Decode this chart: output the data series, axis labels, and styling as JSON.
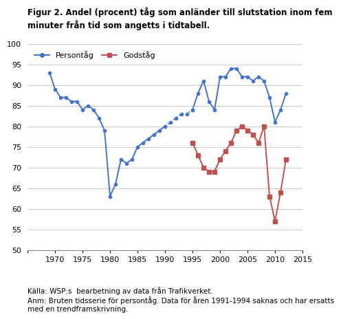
{
  "chart_title_line1": "Figur 2. Andel (procent) tåg som anländer till slutstation inom fem",
  "chart_title_line2": "minuter från tid som angetts i tidtabell.",
  "xlim": [
    1965,
    2015
  ],
  "ylim": [
    50,
    100
  ],
  "yticks": [
    50,
    55,
    60,
    65,
    70,
    75,
    80,
    85,
    90,
    95,
    100
  ],
  "xticks": [
    1965,
    1970,
    1975,
    1980,
    1985,
    1990,
    1995,
    2000,
    2005,
    2010,
    2015
  ],
  "persontag_pre_years": [
    1969,
    1970,
    1971,
    1972,
    1973,
    1974,
    1975,
    1976,
    1977,
    1978,
    1979,
    1980,
    1981,
    1982,
    1983,
    1984,
    1985,
    1986,
    1987,
    1988,
    1989,
    1990
  ],
  "persontag_pre_values": [
    93,
    89,
    87,
    87,
    86,
    86,
    84,
    85,
    84,
    82,
    79,
    63,
    66,
    72,
    71,
    72,
    75,
    76,
    77,
    78,
    79,
    80
  ],
  "persontag_dotted_years": [
    1990,
    1991,
    1992,
    1993,
    1994,
    1995
  ],
  "persontag_dotted_values": [
    80,
    81,
    82,
    83,
    83,
    84
  ],
  "persontag_post_years": [
    1995,
    1996,
    1997,
    1998,
    1999,
    2000,
    2001,
    2002,
    2003,
    2004,
    2005,
    2006,
    2007,
    2008,
    2009,
    2010,
    2011,
    2012
  ],
  "persontag_post_values": [
    84,
    88,
    91,
    86,
    84,
    92,
    92,
    94,
    94,
    92,
    92,
    91,
    92,
    91,
    87,
    81,
    84,
    88
  ],
  "godstag_years": [
    1995,
    1996,
    1997,
    1998,
    1999,
    2000,
    2001,
    2002,
    2003,
    2004,
    2005,
    2006,
    2007,
    2008,
    2009,
    2010,
    2011,
    2012
  ],
  "godstag_values": [
    76,
    73,
    70,
    69,
    69,
    72,
    74,
    76,
    79,
    80,
    79,
    78,
    76,
    80,
    63,
    57,
    64,
    72
  ],
  "persontag_color": "#4472C4",
  "godstag_color": "#C0504D",
  "legend_persontag": "Persontåg",
  "legend_godstag": "Godståg",
  "background_color": "#FFFFFF",
  "grid_color": "#C8C8C8",
  "source_text": "Källa: WSP:s  bearbetning av data från Trafikverket.\nAnm: Bruten tidsserie för persontåg. Data för åren 1991-1994 saknas och har ersatts\nmed en trendframskrivning."
}
